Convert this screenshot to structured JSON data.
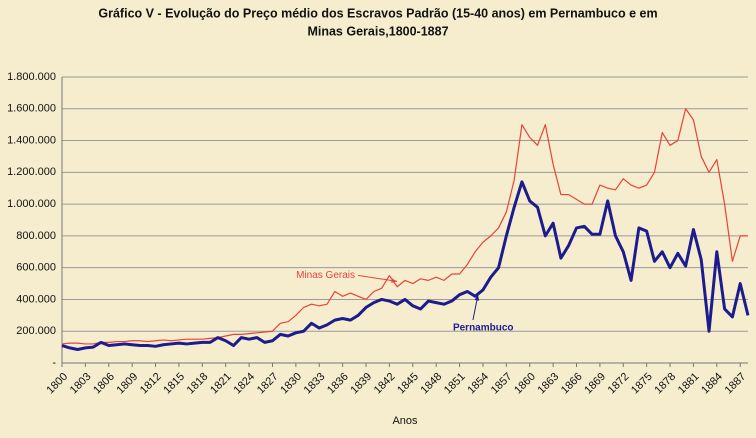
{
  "chart_data": {
    "type": "line",
    "title": [
      "Gráfico V - Evolução do Preço médio dos Escravos Padrão (15-40 anos) em Pernambuco e em",
      "Minas Gerais,1800-1887"
    ],
    "x_label": "Anos",
    "x": [
      1800,
      1801,
      1802,
      1803,
      1804,
      1805,
      1806,
      1807,
      1808,
      1809,
      1810,
      1811,
      1812,
      1813,
      1814,
      1815,
      1816,
      1817,
      1818,
      1819,
      1820,
      1821,
      1822,
      1823,
      1824,
      1825,
      1826,
      1827,
      1828,
      1829,
      1830,
      1831,
      1832,
      1833,
      1834,
      1835,
      1836,
      1837,
      1838,
      1839,
      1840,
      1841,
      1842,
      1843,
      1844,
      1845,
      1846,
      1847,
      1848,
      1849,
      1850,
      1851,
      1852,
      1853,
      1854,
      1855,
      1856,
      1857,
      1858,
      1859,
      1860,
      1861,
      1862,
      1863,
      1864,
      1865,
      1866,
      1867,
      1868,
      1869,
      1870,
      1871,
      1872,
      1873,
      1874,
      1875,
      1876,
      1877,
      1878,
      1879,
      1880,
      1881,
      1882,
      1883,
      1884,
      1885,
      1886,
      1887,
      1888
    ],
    "series": [
      {
        "name": "Minas Gerais",
        "color": "#e8433a",
        "width": 1.2,
        "values": [
          120000,
          125000,
          125000,
          120000,
          120000,
          130000,
          130000,
          135000,
          135000,
          140000,
          140000,
          135000,
          140000,
          145000,
          140000,
          145000,
          150000,
          150000,
          150000,
          155000,
          160000,
          170000,
          180000,
          180000,
          185000,
          190000,
          195000,
          200000,
          250000,
          260000,
          300000,
          350000,
          370000,
          360000,
          370000,
          450000,
          420000,
          440000,
          420000,
          400000,
          450000,
          470000,
          550000,
          480000,
          520000,
          500000,
          530000,
          520000,
          540000,
          520000,
          560000,
          560000,
          620000,
          700000,
          760000,
          800000,
          850000,
          950000,
          1150000,
          1500000,
          1420000,
          1370000,
          1500000,
          1250000,
          1060000,
          1060000,
          1030000,
          1000000,
          1000000,
          1120000,
          1100000,
          1090000,
          1160000,
          1120000,
          1100000,
          1120000,
          1200000,
          1450000,
          1370000,
          1400000,
          1600000,
          1530000,
          1300000,
          1200000,
          1280000,
          1000000,
          640000,
          800000,
          800000
        ]
      },
      {
        "name": "Pernambuco",
        "color": "#1c1c8e",
        "width": 3,
        "values": [
          110000,
          95000,
          85000,
          95000,
          100000,
          130000,
          110000,
          115000,
          120000,
          115000,
          110000,
          110000,
          105000,
          115000,
          120000,
          125000,
          120000,
          125000,
          130000,
          130000,
          160000,
          140000,
          110000,
          160000,
          150000,
          160000,
          130000,
          140000,
          180000,
          170000,
          190000,
          200000,
          250000,
          220000,
          240000,
          270000,
          280000,
          270000,
          300000,
          350000,
          380000,
          400000,
          390000,
          370000,
          400000,
          360000,
          340000,
          390000,
          380000,
          370000,
          390000,
          430000,
          450000,
          420000,
          460000,
          540000,
          600000,
          800000,
          980000,
          1140000,
          1020000,
          980000,
          800000,
          880000,
          660000,
          740000,
          850000,
          860000,
          810000,
          810000,
          1020000,
          800000,
          700000,
          520000,
          850000,
          830000,
          640000,
          700000,
          600000,
          690000,
          610000,
          840000,
          650000,
          200000,
          700000,
          340000,
          290000,
          500000,
          300000
        ]
      }
    ],
    "annotations": [
      {
        "text": "Minas Gerais",
        "series": 0,
        "x": 1844
      },
      {
        "text": "Pernambuco",
        "series": 1,
        "x": 1854
      }
    ],
    "xlim": [
      1800,
      1888
    ],
    "xticks": [
      1800,
      1803,
      1806,
      1809,
      1812,
      1815,
      1818,
      1821,
      1824,
      1827,
      1830,
      1833,
      1836,
      1839,
      1842,
      1845,
      1848,
      1851,
      1854,
      1857,
      1860,
      1863,
      1866,
      1869,
      1872,
      1875,
      1878,
      1881,
      1884,
      1887
    ],
    "ylim": [
      0,
      1800000
    ],
    "yticks": [
      {
        "value": 0,
        "label": "-"
      },
      {
        "value": 200000,
        "label": "200.000"
      },
      {
        "value": 400000,
        "label": "400.000"
      },
      {
        "value": 600000,
        "label": "600.000"
      },
      {
        "value": 800000,
        "label": "800.000"
      },
      {
        "value": 1000000,
        "label": "1.000.000"
      },
      {
        "value": 1200000,
        "label": "1.200.000"
      },
      {
        "value": 1400000,
        "label": "1.400.000"
      },
      {
        "value": 1600000,
        "label": "1.600.000"
      },
      {
        "value": 1800000,
        "label": "1.800.000"
      }
    ],
    "grid": true
  }
}
